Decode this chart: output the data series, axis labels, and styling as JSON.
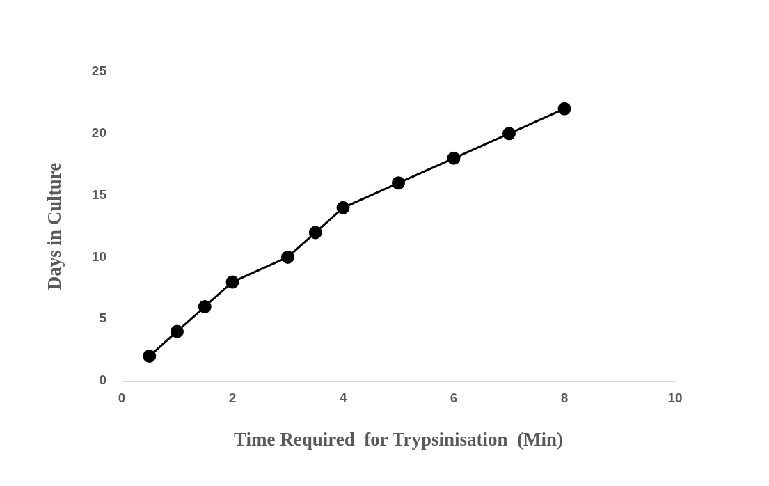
{
  "chart_data": {
    "type": "line",
    "xlabel": "Time Required  for Trypsinisation  (Min)",
    "ylabel": "Days in Culture",
    "x": [
      0.5,
      1,
      1.5,
      2,
      3,
      3.5,
      4,
      5,
      6,
      7,
      8
    ],
    "series": [
      {
        "color": "#000000",
        "values": [
          2,
          4,
          6,
          8,
          10,
          12,
          14,
          16,
          18,
          20,
          22
        ]
      }
    ],
    "xlim": [
      0,
      10
    ],
    "xticks": [
      0,
      2,
      4,
      6,
      8,
      10
    ],
    "ylim": [
      0,
      25
    ],
    "yticks": [
      0,
      5,
      10,
      15,
      20,
      25
    ],
    "grid": false,
    "legend": false,
    "marker": "circle",
    "line_style": "solid"
  }
}
